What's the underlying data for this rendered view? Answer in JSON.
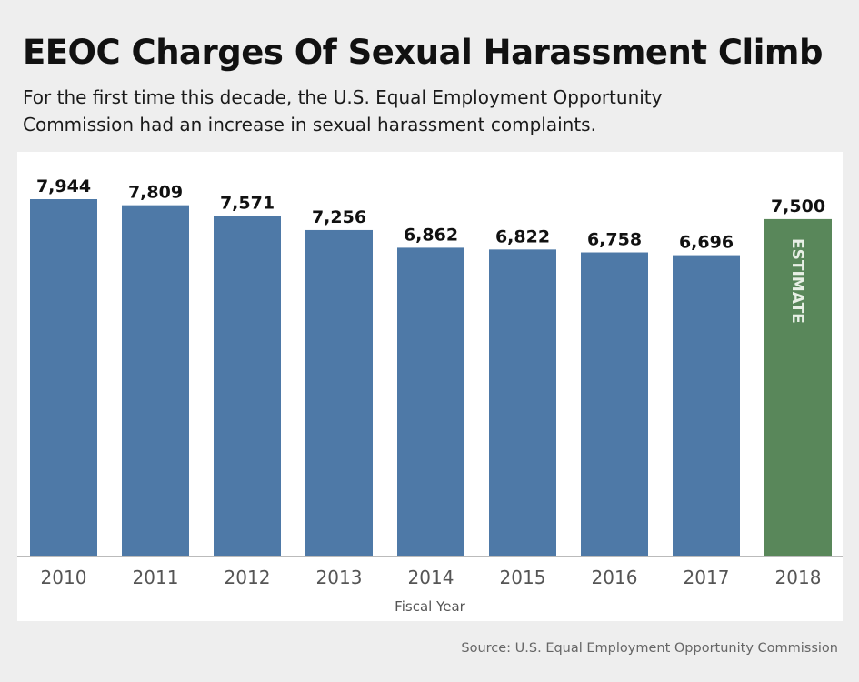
{
  "chart_data": {
    "type": "bar",
    "title": "EEOC Charges Of Sexual Harassment Climb",
    "subtitle": "For the first time this decade, the U.S. Equal Employment Opportunity\nCommission had an increase in sexual harassment complaints.",
    "categories": [
      "2010",
      "2011",
      "2012",
      "2013",
      "2014",
      "2015",
      "2016",
      "2017",
      "2018"
    ],
    "values": [
      7944,
      7809,
      7571,
      7256,
      6862,
      6822,
      6758,
      6696,
      7500
    ],
    "value_labels": [
      "7,944",
      "7,809",
      "7,571",
      "7,256",
      "6,862",
      "6,822",
      "6,758",
      "6,696",
      "7,500"
    ],
    "estimate_flags": [
      false,
      false,
      false,
      false,
      false,
      false,
      false,
      false,
      true
    ],
    "estimate_label": "ESTIMATE",
    "xlabel": "Fiscal Year",
    "ylabel": "",
    "ylim": [
      0,
      8500
    ],
    "grid": false,
    "colors": {
      "actual": "#4e79a7",
      "estimate": "#59875a",
      "panel": "#ffffff",
      "page": "#eeeeee"
    }
  },
  "source": "Source: U.S. Equal Employment Opportunity Commission"
}
